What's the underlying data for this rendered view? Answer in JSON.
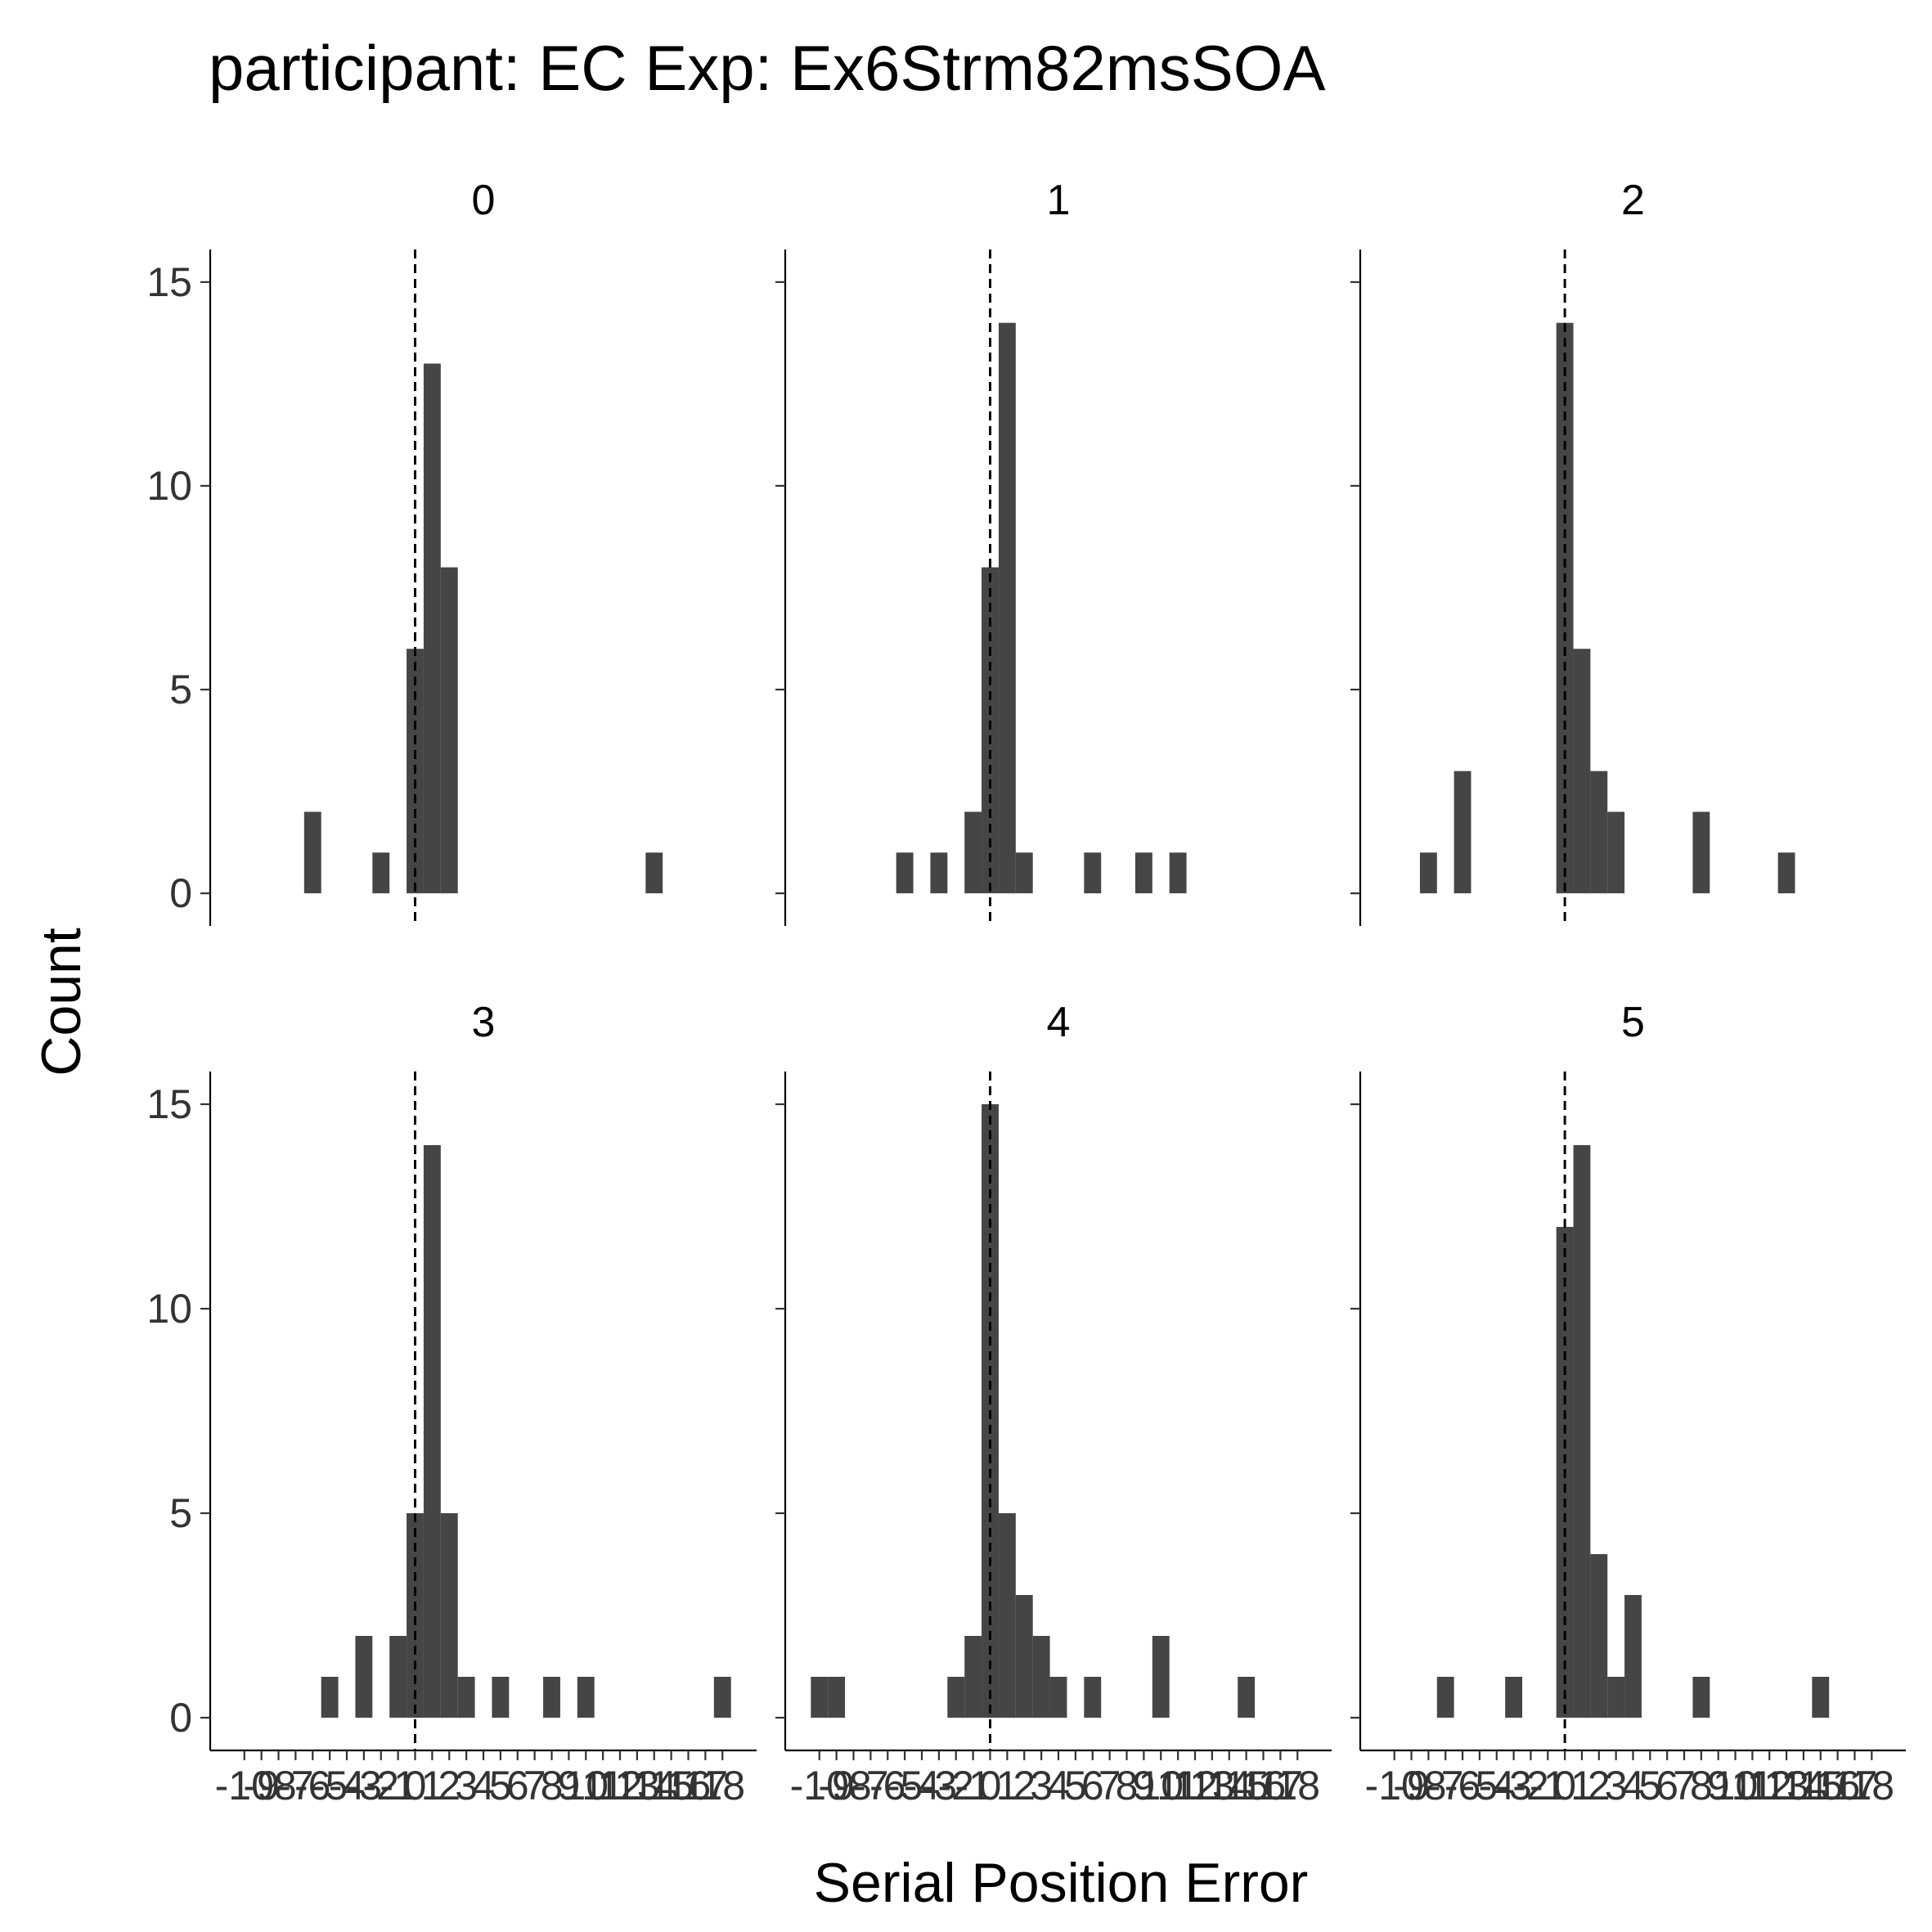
{
  "title": "participant: EC Exp: Ex6Strm82msSOA",
  "chart_data": {
    "type": "bar",
    "title": "participant: EC Exp: Ex6Strm82msSOA",
    "xlabel": "Serial Position Error",
    "ylabel": "Count",
    "x_ticks": [
      -10,
      -9,
      -8,
      -7,
      -6,
      -5,
      -4,
      -3,
      -2,
      -1,
      0,
      1,
      2,
      3,
      4,
      5,
      6,
      7,
      8,
      9,
      10,
      11,
      12,
      13,
      14,
      15,
      16,
      17,
      18
    ],
    "y_ticks": [
      0,
      5,
      10,
      15
    ],
    "xlim": [
      -12,
      20
    ],
    "ylim": [
      -0.8,
      15.8
    ],
    "reference_line_x": 0,
    "bar_color": "#454545",
    "grid": false,
    "panels": [
      {
        "label": "0",
        "bars": [
          {
            "x": -6,
            "y": 2
          },
          {
            "x": -2,
            "y": 1
          },
          {
            "x": 0,
            "y": 6
          },
          {
            "x": 1,
            "y": 13
          },
          {
            "x": 2,
            "y": 8
          },
          {
            "x": 14,
            "y": 1
          }
        ]
      },
      {
        "label": "1",
        "bars": [
          {
            "x": -5,
            "y": 1
          },
          {
            "x": -3,
            "y": 1
          },
          {
            "x": -1,
            "y": 2
          },
          {
            "x": 0,
            "y": 8
          },
          {
            "x": 1,
            "y": 14
          },
          {
            "x": 2,
            "y": 1
          },
          {
            "x": 6,
            "y": 1
          },
          {
            "x": 9,
            "y": 1
          },
          {
            "x": 11,
            "y": 1
          }
        ]
      },
      {
        "label": "2",
        "bars": [
          {
            "x": -8,
            "y": 1
          },
          {
            "x": -6,
            "y": 3
          },
          {
            "x": 0,
            "y": 14
          },
          {
            "x": 1,
            "y": 6
          },
          {
            "x": 2,
            "y": 3
          },
          {
            "x": 3,
            "y": 2
          },
          {
            "x": 8,
            "y": 2
          },
          {
            "x": 13,
            "y": 1
          }
        ]
      },
      {
        "label": "3",
        "bars": [
          {
            "x": -5,
            "y": 1
          },
          {
            "x": -3,
            "y": 2
          },
          {
            "x": -1,
            "y": 2
          },
          {
            "x": 0,
            "y": 5
          },
          {
            "x": 1,
            "y": 14
          },
          {
            "x": 2,
            "y": 5
          },
          {
            "x": 3,
            "y": 1
          },
          {
            "x": 5,
            "y": 1
          },
          {
            "x": 8,
            "y": 1
          },
          {
            "x": 10,
            "y": 1
          },
          {
            "x": 18,
            "y": 1
          }
        ]
      },
      {
        "label": "4",
        "bars": [
          {
            "x": -10,
            "y": 1
          },
          {
            "x": -9,
            "y": 1
          },
          {
            "x": -2,
            "y": 1
          },
          {
            "x": -1,
            "y": 2
          },
          {
            "x": 0,
            "y": 15
          },
          {
            "x": 1,
            "y": 5
          },
          {
            "x": 2,
            "y": 3
          },
          {
            "x": 3,
            "y": 2
          },
          {
            "x": 4,
            "y": 1
          },
          {
            "x": 6,
            "y": 1
          },
          {
            "x": 10,
            "y": 2
          },
          {
            "x": 15,
            "y": 1
          }
        ]
      },
      {
        "label": "5",
        "bars": [
          {
            "x": -7,
            "y": 1
          },
          {
            "x": -3,
            "y": 1
          },
          {
            "x": 0,
            "y": 12
          },
          {
            "x": 1,
            "y": 14
          },
          {
            "x": 2,
            "y": 4
          },
          {
            "x": 3,
            "y": 1
          },
          {
            "x": 4,
            "y": 3
          },
          {
            "x": 8,
            "y": 1
          },
          {
            "x": 15,
            "y": 1
          }
        ]
      }
    ]
  }
}
